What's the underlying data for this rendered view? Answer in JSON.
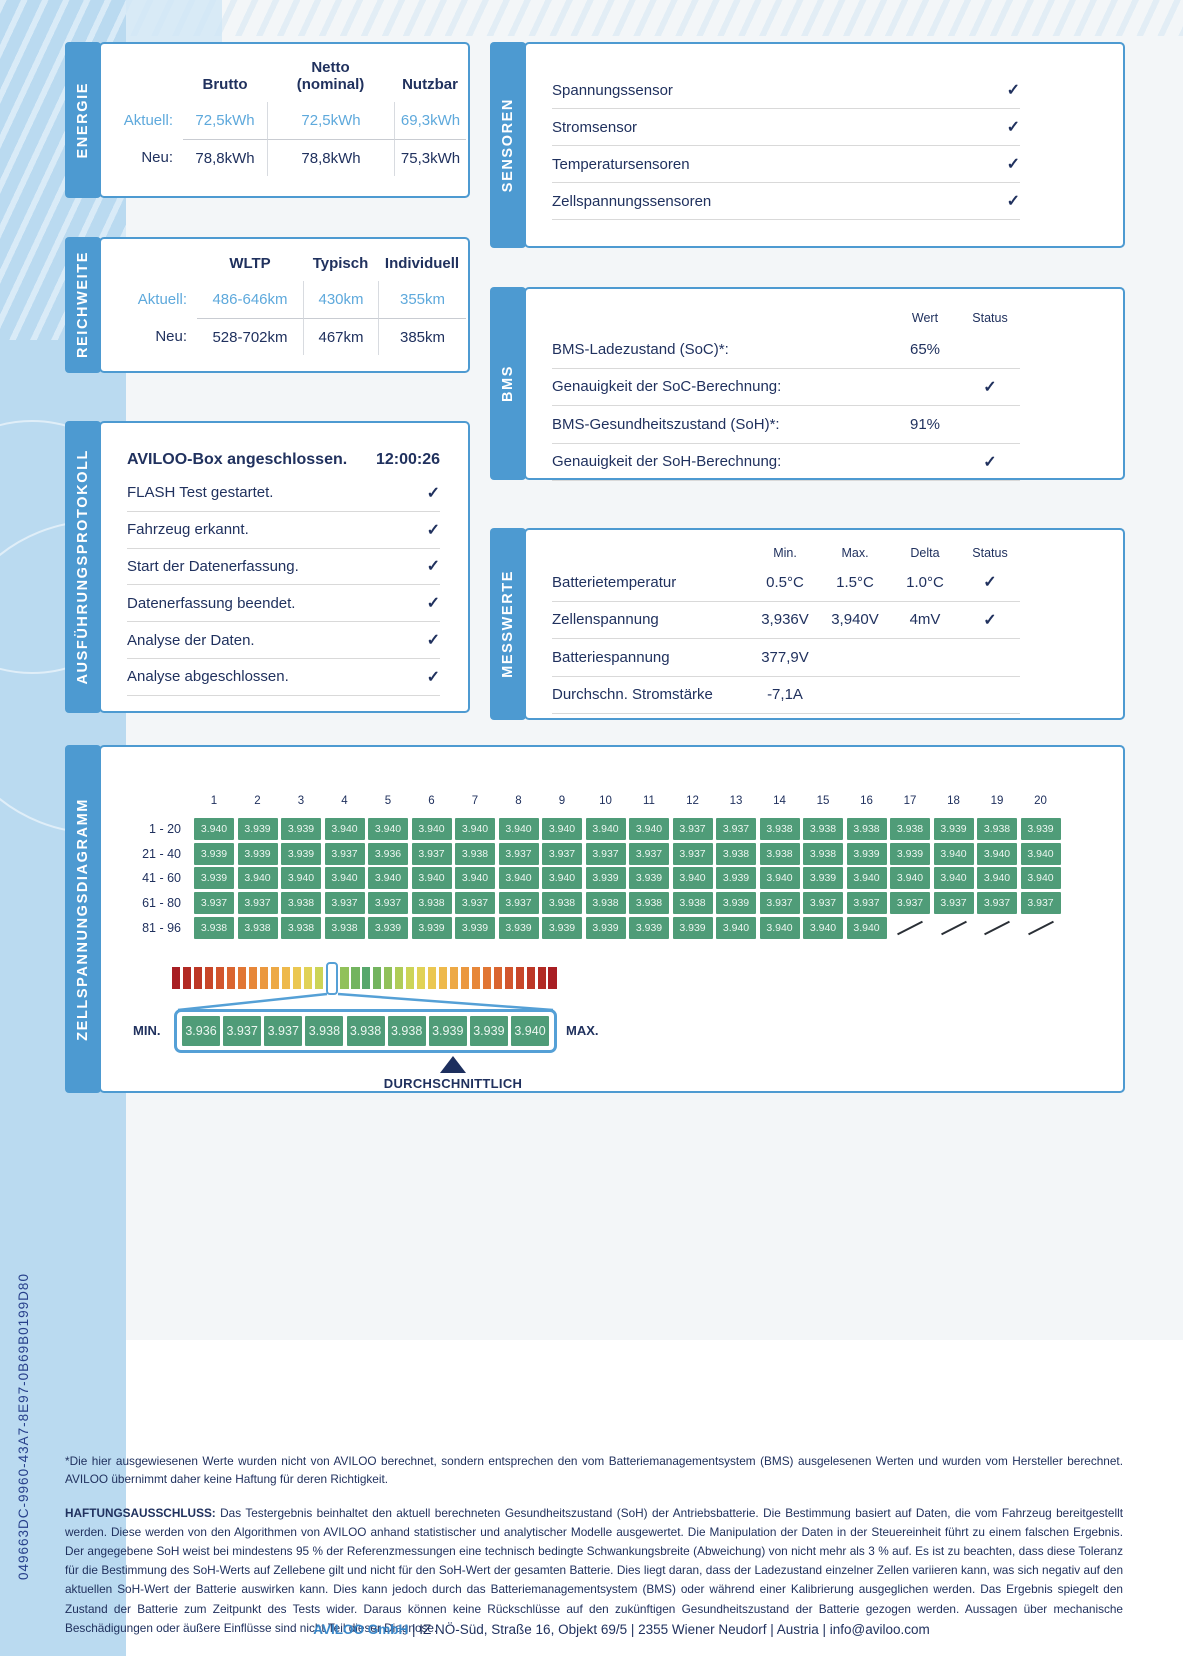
{
  "icons": {
    "check_glyph": "✓"
  },
  "colors": {
    "accent_blue": "#4d9ad1",
    "light_blue_text": "#5ea9dc",
    "navy": "#20315e",
    "cell_green": "#4f9c78",
    "band_blue": "#badaf0"
  },
  "page": {
    "serial": "049663DC-9960-43A7-8E97-0B69B0199D80",
    "footnote": "*Die hier ausgewiesenen Werte wurden nicht von AVILOO berechnet, sondern entsprechen den vom Batteriemanagementsystem (BMS) ausgelesenen Werten und wurden vom Hersteller berechnet. AVILOO übernimmt daher keine Haftung für deren Richtigkeit.",
    "disclaimer_label": "HAFTUNGSAUSSCHLUSS:",
    "disclaimer_body": " Das Testergebnis beinhaltet den aktuell berechneten Gesundheitszustand (SoH) der Antriebsbatterie. Die Bestimmung basiert auf Daten, die vom Fahrzeug bereitgestellt werden. Diese werden von den Algorithmen von AVILOO anhand statistischer und analytischer Modelle ausgewertet. Die Manipulation der Daten in der Steuereinheit führt zu einem falschen Ergebnis. Der angegebene SoH weist bei mindestens 95 % der Referenzmessungen eine technisch bedingte Schwankungsbreite (Abweichung) von nicht mehr als 3 % auf. Es ist zu beachten, dass diese Toleranz für die Bestimmung des SoH-Werts auf Zellebene gilt und nicht für den SoH-Wert der gesamten Batterie. Dies liegt daran, dass der Ladezustand einzelner Zellen variieren kann, was sich negativ auf den aktuellen SoH-Wert der Batterie auswirken kann. Dies kann jedoch durch das Batteriemanagementsystem (BMS) oder während einer Kalibrierung ausgeglichen werden. Das Ergebnis spiegelt den Zustand der Batterie zum Zeitpunkt des Tests wider. Daraus können keine Rückschlüsse auf den zukünftigen Gesundheitszustand der Batterie gezogen werden. Aussagen über mechanische Beschädigungen oder äußere Einflüsse sind nicht Teil dieser Diagnose.",
    "footer_company": "AVILOO GmbH",
    "footer_rest": " | IZ NÖ-Süd, Straße 16, Objekt 69/5 | 2355 Wiener Neudorf | Austria | info@aviloo.com"
  },
  "energie": {
    "title": "ENERGIE",
    "columns": [
      "Brutto",
      "Netto\n(nominal)",
      "Nutzbar"
    ],
    "rows": [
      {
        "label": "Aktuell:",
        "values": [
          "72,5kWh",
          "72,5kWh",
          "69,3kWh"
        ],
        "highlight": true
      },
      {
        "label": "Neu:",
        "values": [
          "78,8kWh",
          "78,8kWh",
          "75,3kWh"
        ],
        "highlight": false
      }
    ]
  },
  "reichweite": {
    "title": "REICHWEITE",
    "columns": [
      "WLTP",
      "Typisch",
      "Individuell"
    ],
    "rows": [
      {
        "label": "Aktuell:",
        "values": [
          "486-646km",
          "430km",
          "355km"
        ],
        "highlight": true
      },
      {
        "label": "Neu:",
        "values": [
          "528-702km",
          "467km",
          "385km"
        ],
        "highlight": false
      }
    ]
  },
  "sensoren": {
    "title": "SENSOREN",
    "items": [
      "Spannungssensor",
      "Stromsensor",
      "Temperatursensoren",
      "Zellspannungssensoren"
    ]
  },
  "protokoll": {
    "title": "AUSFÜHRUNGSPROTOKOLL",
    "header": {
      "label": "AVILOO-Box angeschlossen.",
      "time": "12:00:26"
    },
    "items": [
      "FLASH Test gestartet.",
      "Fahrzeug erkannt.",
      "Start der Datenerfassung.",
      "Datenerfassung beendet.",
      "Analyse der Daten.",
      "Analyse abgeschlossen."
    ]
  },
  "bms": {
    "title": "BMS",
    "headers": {
      "wert": "Wert",
      "status": "Status"
    },
    "rows": [
      {
        "label": "BMS-Ladezustand (SoC)*:",
        "wert": "65%",
        "check": false
      },
      {
        "label": "Genauigkeit der SoC-Berechnung:",
        "wert": "",
        "check": true
      },
      {
        "label": "BMS-Gesundheitszustand (SoH)*:",
        "wert": "91%",
        "check": false
      },
      {
        "label": "Genauigkeit der SoH-Berechnung:",
        "wert": "",
        "check": true
      }
    ]
  },
  "messwerte": {
    "title": "MESSWERTE",
    "headers": [
      "Min.",
      "Max.",
      "Delta",
      "Status"
    ],
    "rows": [
      {
        "label": "Batterietemperatur",
        "min": "0.5°C",
        "max": "1.5°C",
        "delta": "1.0°C",
        "check": true
      },
      {
        "label": "Zellenspannung",
        "min": "3,936V",
        "max": "3,940V",
        "delta": "4mV",
        "check": true
      },
      {
        "label": "Batteriespannung",
        "min": "377,9V",
        "max": "",
        "delta": "",
        "check": false
      },
      {
        "label": "Durchschn. Stromstärke",
        "min": "-7,1A",
        "max": "",
        "delta": "",
        "check": false
      }
    ]
  },
  "zellspannung": {
    "title": "ZELLSPANNUNGSDIAGRAMM",
    "col_headers": [
      "1",
      "2",
      "3",
      "4",
      "5",
      "6",
      "7",
      "8",
      "9",
      "10",
      "11",
      "12",
      "13",
      "14",
      "15",
      "16",
      "17",
      "18",
      "19",
      "20"
    ],
    "rows": [
      {
        "label": "1 - 20",
        "values": [
          "3.940",
          "3.939",
          "3.939",
          "3.940",
          "3.940",
          "3.940",
          "3.940",
          "3.940",
          "3.940",
          "3.940",
          "3.940",
          "3.937",
          "3.937",
          "3.938",
          "3.938",
          "3.938",
          "3.938",
          "3.939",
          "3.938",
          "3.939"
        ]
      },
      {
        "label": "21 - 40",
        "values": [
          "3.939",
          "3.939",
          "3.939",
          "3.937",
          "3.936",
          "3.937",
          "3.938",
          "3.937",
          "3.937",
          "3.937",
          "3.937",
          "3.937",
          "3.938",
          "3.938",
          "3.938",
          "3.939",
          "3.939",
          "3.940",
          "3.940",
          "3.940"
        ]
      },
      {
        "label": "41 - 60",
        "values": [
          "3.939",
          "3.940",
          "3.940",
          "3.940",
          "3.940",
          "3.940",
          "3.940",
          "3.940",
          "3.940",
          "3.939",
          "3.939",
          "3.940",
          "3.939",
          "3.940",
          "3.939",
          "3.940",
          "3.940",
          "3.940",
          "3.940",
          "3.940"
        ]
      },
      {
        "label": "61 - 80",
        "values": [
          "3.937",
          "3.937",
          "3.938",
          "3.937",
          "3.937",
          "3.938",
          "3.937",
          "3.937",
          "3.938",
          "3.938",
          "3.938",
          "3.938",
          "3.939",
          "3.937",
          "3.937",
          "3.937",
          "3.937",
          "3.937",
          "3.937",
          "3.937"
        ]
      },
      {
        "label": "81 - 96",
        "values": [
          "3.938",
          "3.938",
          "3.938",
          "3.938",
          "3.939",
          "3.939",
          "3.939",
          "3.939",
          "3.939",
          "3.939",
          "3.939",
          "3.939",
          "3.940",
          "3.940",
          "3.940",
          "3.940",
          null,
          null,
          null,
          null
        ]
      }
    ],
    "scale": {
      "min_label": "MIN.",
      "max_label": "MAX.",
      "avg_label": "DURCHSCHNITTLICH",
      "zoom_values": [
        "3.936",
        "3.937",
        "3.937",
        "3.938",
        "3.938",
        "3.938",
        "3.939",
        "3.939",
        "3.940"
      ],
      "highlight_index": 14,
      "gradient": [
        "#a81e23",
        "#b22a24",
        "#bd3726",
        "#c84629",
        "#d2552d",
        "#da6530",
        "#e17634",
        "#e78739",
        "#eb983f",
        "#eda945",
        "#eeb94b",
        "#ebc751",
        "#e1d256",
        "#ccd457",
        "#afcc57",
        "#91c15a",
        "#73b45f",
        "#57a76c",
        "#73b45f",
        "#91c15a",
        "#afcc57",
        "#ccd457",
        "#e1d256",
        "#ebc751",
        "#eeb94b",
        "#eda945",
        "#eb983f",
        "#e78739",
        "#e17634",
        "#da6530",
        "#d2552d",
        "#c84629",
        "#bd3726",
        "#b22a24",
        "#a81e23"
      ]
    }
  }
}
